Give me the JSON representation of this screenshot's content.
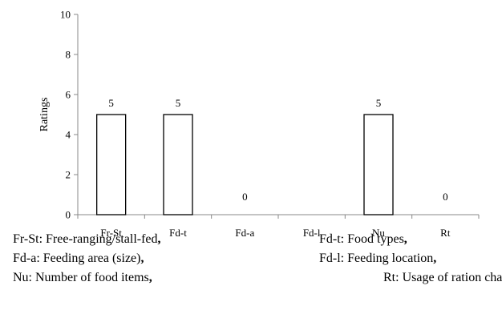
{
  "chart_data": {
    "type": "bar",
    "ylabel": "Ratings",
    "xlabel": "",
    "ylim": [
      0,
      10
    ],
    "yticks": [
      0,
      2,
      4,
      6,
      8,
      10
    ],
    "grid": false,
    "categories": [
      "Fr-St",
      "Fd-t",
      "Fd-a",
      "Fd-l",
      "Nu",
      "Rt"
    ],
    "values": [
      5,
      5,
      0,
      null,
      5,
      0
    ],
    "data_labels": [
      "5",
      "5",
      "0",
      "",
      "5",
      "0"
    ],
    "bar_fill": "#ffffff",
    "bar_stroke": "#000000"
  },
  "legend": {
    "rows": [
      [
        {
          "text": "Fr-St: Free-ranging/stall-fed",
          "punct": ","
        },
        {
          "text": "Fd-t: Food types",
          "punct": ","
        }
      ],
      [
        {
          "text": "Fd-a: Feeding area (size)",
          "punct": ","
        },
        {
          "text": "Fd-l: Feeding location",
          "punct": ","
        }
      ],
      [
        {
          "text": "Nu: Number of food items",
          "punct": ","
        },
        {
          "text": "Rt: Usage of ration chart",
          "punct": "."
        }
      ]
    ]
  }
}
